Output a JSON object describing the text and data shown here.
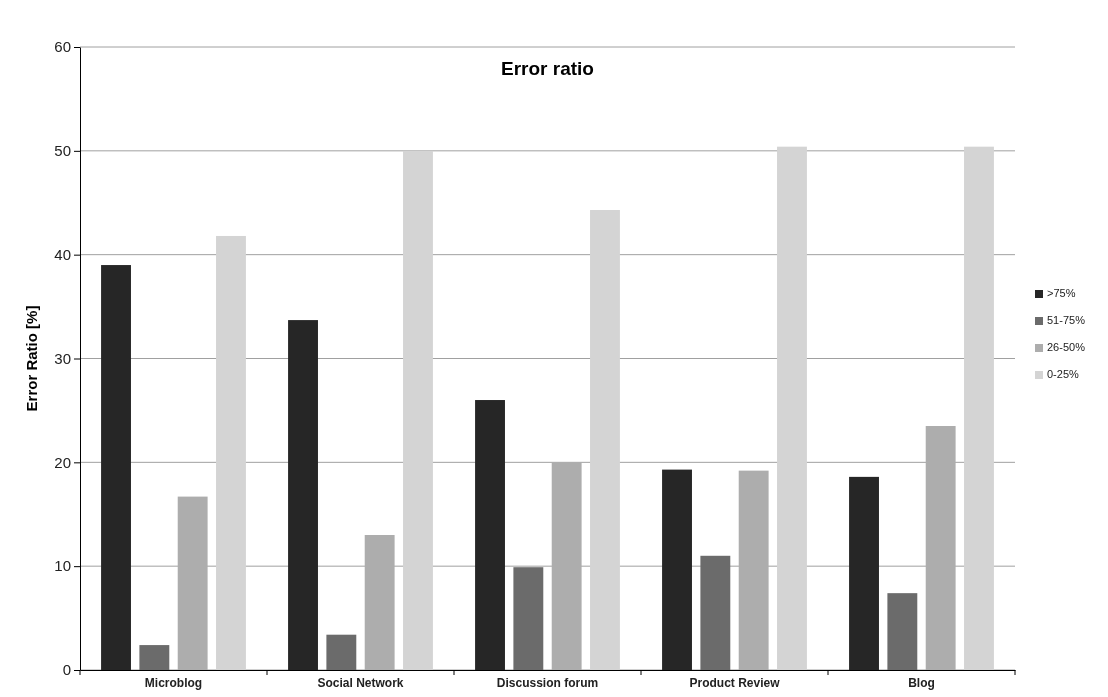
{
  "chart_data": {
    "type": "bar",
    "title": "Error ratio",
    "ylabel": "Error Ratio [%]",
    "categories": [
      "Microblog",
      "Social Network",
      "Discussion forum",
      "Product Review",
      "Blog"
    ],
    "series": [
      {
        "name": ">75%",
        "color": "#262626",
        "values": [
          39.0,
          33.7,
          26.0,
          19.3,
          18.6
        ]
      },
      {
        "name": "51-75%",
        "color": "#6b6b6b",
        "values": [
          2.4,
          3.4,
          9.9,
          11.0,
          7.4
        ]
      },
      {
        "name": "26-50%",
        "color": "#adadad",
        "values": [
          16.7,
          13.0,
          20.0,
          19.2,
          23.5
        ]
      },
      {
        "name": "0-25%",
        "color": "#d4d4d4",
        "values": [
          41.8,
          50.0,
          44.3,
          50.4,
          50.4
        ]
      }
    ],
    "ylim": [
      0,
      60
    ],
    "yticks": [
      0,
      10,
      20,
      30,
      40,
      50,
      60
    ],
    "grid": "y",
    "legend": "right"
  }
}
